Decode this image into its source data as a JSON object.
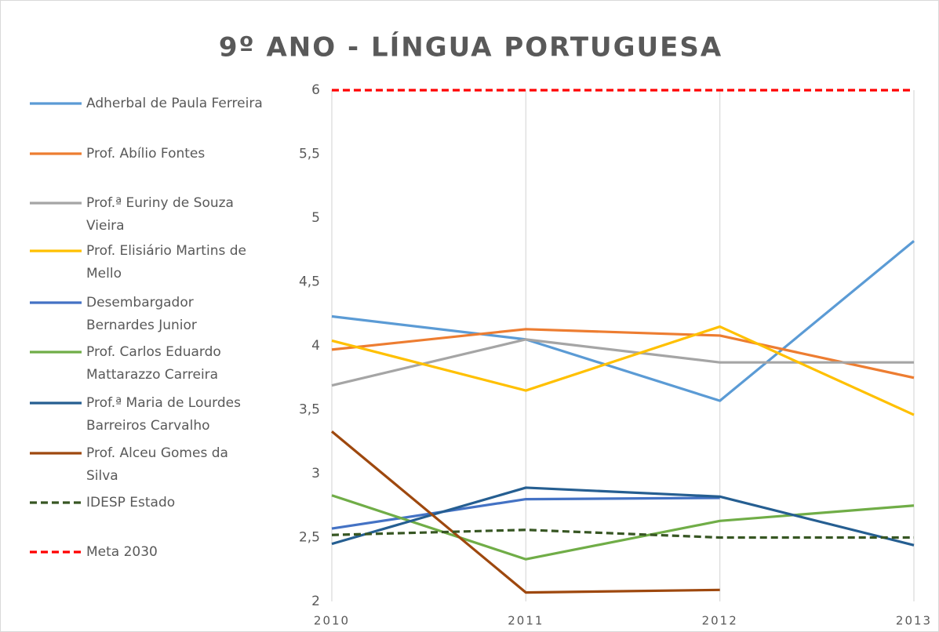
{
  "chart_data": {
    "type": "line",
    "title": "9º ANO - LÍNGUA PORTUGUESA",
    "categories": [
      "2010",
      "2011",
      "2012",
      "2013"
    ],
    "ylim": [
      2,
      6
    ],
    "yticks": [
      2,
      {
        "value": 2.5,
        "label": "2,5"
      },
      3,
      {
        "value": 3.5,
        "label": "3,5"
      },
      4,
      {
        "value": 4.5,
        "label": "4,5"
      },
      5,
      {
        "value": 5.5,
        "label": "5,5"
      },
      6
    ],
    "grid": "vertical",
    "legend": "left",
    "series": [
      {
        "name": "Adherbal de Paula Ferreira",
        "color": "#5b9bd5",
        "values": [
          4.23,
          4.05,
          3.57,
          4.82
        ]
      },
      {
        "name": "Prof. Abílio Fontes",
        "color": "#ed7d31",
        "values": [
          3.97,
          4.13,
          4.08,
          3.75
        ]
      },
      {
        "name": "Prof.ª Euriny de Souza Vieira",
        "color": "#a5a5a5",
        "values": [
          3.69,
          4.05,
          3.87,
          3.87
        ]
      },
      {
        "name": "Prof. Elisiário Martins de Mello",
        "color": "#ffc000",
        "values": [
          4.04,
          3.65,
          4.15,
          3.46
        ]
      },
      {
        "name": "Desembargador Bernardes Junior",
        "color": "#4472c4",
        "values": [
          2.57,
          2.8,
          2.81,
          null
        ]
      },
      {
        "name": "Prof. Carlos Eduardo Mattarazzo Carreira",
        "color": "#70ad47",
        "values": [
          2.83,
          2.33,
          2.63,
          2.75
        ]
      },
      {
        "name": "Prof.ª Maria de Lourdes Barreiros Carvalho",
        "color": "#255e91",
        "values": [
          2.45,
          2.89,
          2.82,
          2.44
        ]
      },
      {
        "name": "Prof. Alceu Gomes da Silva",
        "color": "#9e480e",
        "values": [
          3.33,
          2.07,
          2.09,
          null
        ]
      },
      {
        "name": "IDESP Estado",
        "color": "#375623",
        "dashed": true,
        "values": [
          2.52,
          2.56,
          2.5,
          2.5
        ]
      },
      {
        "name": "Meta 2030",
        "color": "#ff0000",
        "dashed": true,
        "values": [
          6,
          6,
          6,
          6
        ]
      }
    ]
  }
}
